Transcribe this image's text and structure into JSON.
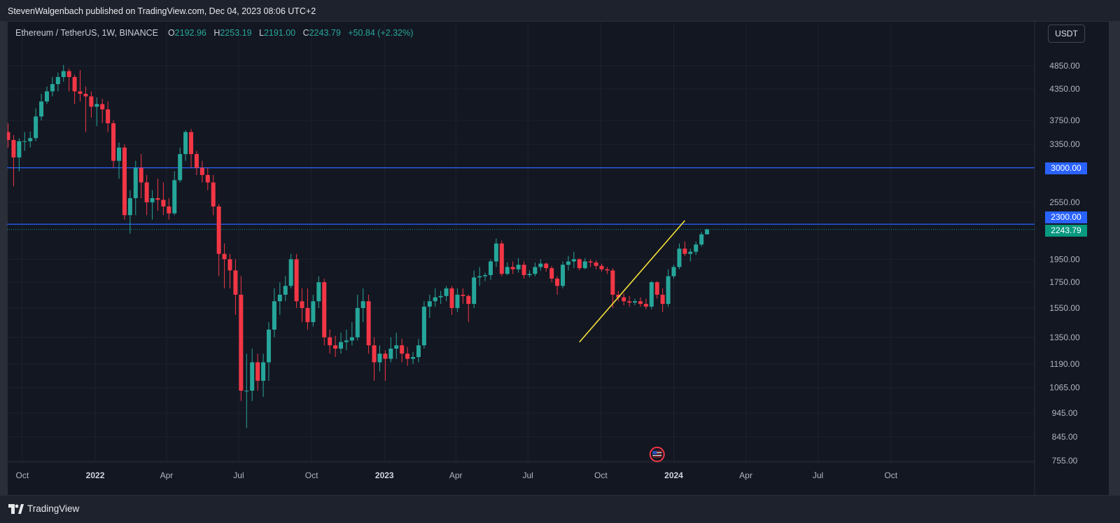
{
  "header": {
    "publisher_line": "StevenWalgenbach published on TradingView.com, Dec 04, 2023 08:06 UTC+2"
  },
  "legend": {
    "symbol": "Ethereum / TetherUS, 1W, BINANCE",
    "open_label": "O",
    "open": "2192.96",
    "high_label": "H",
    "high": "2253.19",
    "low_label": "L",
    "low": "2191.00",
    "close_label": "C",
    "close": "2243.79",
    "change": "+50.84 (+2.32%)"
  },
  "currency_button": "USDT",
  "footer": {
    "brand": "TradingView"
  },
  "colors": {
    "background": "#131722",
    "up": "#26a69a",
    "down": "#f23645",
    "level_line": "#2962ff",
    "trend_line": "#f5e03a",
    "last_price": "#089981"
  },
  "price_tags": {
    "level_3000": "3000.00",
    "level_2300": "2300.00",
    "last_price": "2243.79"
  },
  "chart_data": {
    "type": "candlestick",
    "timeframe": "1W",
    "y_scale": "log",
    "ylim": [
      720,
      5600
    ],
    "y_ticks": [
      "4850.00",
      "4350.00",
      "3750.00",
      "3350.00",
      "2550.00",
      "1950.00",
      "1750.00",
      "1550.00",
      "1350.00",
      "1190.00",
      "1065.00",
      "945.00",
      "845.00",
      "755.00"
    ],
    "x_ticks": [
      {
        "label": "Oct",
        "bold": false
      },
      {
        "label": "2022",
        "bold": true
      },
      {
        "label": "Apr",
        "bold": false
      },
      {
        "label": "Jul",
        "bold": false
      },
      {
        "label": "Oct",
        "bold": false
      },
      {
        "label": "2023",
        "bold": true
      },
      {
        "label": "Apr",
        "bold": false
      },
      {
        "label": "Jul",
        "bold": false
      },
      {
        "label": "Oct",
        "bold": false
      },
      {
        "label": "2024",
        "bold": true
      },
      {
        "label": "Apr",
        "bold": false
      },
      {
        "label": "Jul",
        "bold": false
      },
      {
        "label": "Oct",
        "bold": false
      }
    ],
    "horizontal_levels": [
      3000,
      2300
    ],
    "last_price": 2243.79,
    "trendline": {
      "from": {
        "date": "2023-09-04",
        "price": 1320
      },
      "to": {
        "date": "2024-01-15",
        "price": 2340
      }
    },
    "event_marker": {
      "date": "2023-12-11",
      "icon": "us-flag-icon"
    },
    "first_week": "2021-09-13",
    "candles": [
      [
        3550,
        3420,
        3700,
        3300
      ],
      [
        3420,
        3150,
        3500,
        2750
      ],
      [
        3150,
        3400,
        3450,
        2950
      ],
      [
        3400,
        3400,
        3550,
        3250
      ],
      [
        3400,
        3450,
        3560,
        3300
      ],
      [
        3450,
        3820,
        3970,
        3400
      ],
      [
        3820,
        4100,
        4250,
        3750
      ],
      [
        4100,
        4300,
        4400,
        4050
      ],
      [
        4300,
        4450,
        4600,
        4200
      ],
      [
        4450,
        4600,
        4700,
        4300
      ],
      [
        4600,
        4730,
        4870,
        4500
      ],
      [
        4730,
        4600,
        4790,
        4300
      ],
      [
        4600,
        4300,
        4650,
        4050
      ],
      [
        4300,
        4250,
        4750,
        4100
      ],
      [
        4250,
        4200,
        4400,
        3550
      ],
      [
        4200,
        4000,
        4300,
        3800
      ],
      [
        4000,
        4050,
        4180,
        3650
      ],
      [
        4050,
        3950,
        4150,
        3700
      ],
      [
        3950,
        3700,
        4100,
        3550
      ],
      [
        3700,
        3100,
        3750,
        3000
      ],
      [
        3100,
        3300,
        3380,
        2850
      ],
      [
        3300,
        2400,
        3350,
        2350
      ],
      [
        2400,
        2600,
        2700,
        2200
      ],
      [
        2600,
        3000,
        3100,
        2400
      ],
      [
        3000,
        2800,
        3200,
        2600
      ],
      [
        2800,
        2550,
        2900,
        2400
      ],
      [
        2550,
        2600,
        2700,
        2350
      ],
      [
        2600,
        2580,
        2850,
        2450
      ],
      [
        2580,
        2500,
        2800,
        2400
      ],
      [
        2500,
        2420,
        2600,
        2350
      ],
      [
        2420,
        2830,
        2950,
        2400
      ],
      [
        2830,
        3200,
        3300,
        2800
      ],
      [
        3200,
        3550,
        3580,
        3100
      ],
      [
        3550,
        3200,
        3600,
        3000
      ],
      [
        3200,
        3000,
        3250,
        2900
      ],
      [
        3000,
        2900,
        3100,
        2800
      ],
      [
        2900,
        2800,
        3000,
        2700
      ],
      [
        2800,
        2500,
        2900,
        2400
      ],
      [
        2500,
        2000,
        2530,
        1800
      ],
      [
        2000,
        1950,
        2100,
        1700
      ],
      [
        1950,
        1850,
        2000,
        1700
      ],
      [
        1850,
        1650,
        1950,
        1500
      ],
      [
        1650,
        1050,
        1800,
        1000
      ],
      [
        1050,
        1050,
        1250,
        880
      ],
      [
        1050,
        1200,
        1280,
        1000
      ],
      [
        1200,
        1100,
        1250,
        1050
      ],
      [
        1100,
        1200,
        1250,
        1020
      ],
      [
        1200,
        1400,
        1450,
        1100
      ],
      [
        1400,
        1600,
        1700,
        1350
      ],
      [
        1600,
        1650,
        1750,
        1500
      ],
      [
        1650,
        1720,
        1800,
        1600
      ],
      [
        1720,
        1950,
        2000,
        1700
      ],
      [
        1950,
        1600,
        2000,
        1550
      ],
      [
        1600,
        1550,
        1700,
        1450
      ],
      [
        1550,
        1450,
        1700,
        1400
      ],
      [
        1450,
        1600,
        1650,
        1420
      ],
      [
        1600,
        1750,
        1800,
        1550
      ],
      [
        1750,
        1350,
        1780,
        1300
      ],
      [
        1350,
        1300,
        1400,
        1250
      ],
      [
        1300,
        1280,
        1360,
        1230
      ],
      [
        1280,
        1320,
        1380,
        1250
      ],
      [
        1320,
        1330,
        1400,
        1270
      ],
      [
        1330,
        1350,
        1450,
        1300
      ],
      [
        1350,
        1550,
        1650,
        1330
      ],
      [
        1550,
        1600,
        1700,
        1450
      ],
      [
        1600,
        1300,
        1650,
        1250
      ],
      [
        1300,
        1200,
        1350,
        1100
      ],
      [
        1200,
        1250,
        1300,
        1150
      ],
      [
        1250,
        1220,
        1270,
        1100
      ],
      [
        1220,
        1280,
        1350,
        1200
      ],
      [
        1280,
        1300,
        1380,
        1220
      ],
      [
        1300,
        1250,
        1340,
        1200
      ],
      [
        1250,
        1220,
        1290,
        1180
      ],
      [
        1220,
        1230,
        1260,
        1190
      ],
      [
        1230,
        1300,
        1340,
        1200
      ],
      [
        1300,
        1560,
        1600,
        1280
      ],
      [
        1560,
        1600,
        1650,
        1480
      ],
      [
        1600,
        1630,
        1700,
        1560
      ],
      [
        1630,
        1640,
        1680,
        1580
      ],
      [
        1640,
        1700,
        1720,
        1600
      ],
      [
        1700,
        1550,
        1720,
        1500
      ],
      [
        1550,
        1650,
        1700,
        1520
      ],
      [
        1650,
        1640,
        1700,
        1580
      ],
      [
        1640,
        1580,
        1650,
        1450
      ],
      [
        1580,
        1790,
        1850,
        1550
      ],
      [
        1790,
        1800,
        1880,
        1720
      ],
      [
        1800,
        1810,
        1830,
        1760
      ],
      [
        1810,
        1930,
        1950,
        1770
      ],
      [
        1930,
        2100,
        2150,
        1880
      ],
      [
        2100,
        1820,
        2130,
        1800
      ],
      [
        1820,
        1880,
        1920,
        1810
      ],
      [
        1880,
        1860,
        1930,
        1820
      ],
      [
        1860,
        1900,
        1960,
        1830
      ],
      [
        1900,
        1810,
        1930,
        1780
      ],
      [
        1810,
        1820,
        1850,
        1790
      ],
      [
        1820,
        1880,
        1920,
        1800
      ],
      [
        1880,
        1910,
        1950,
        1850
      ],
      [
        1910,
        1870,
        1920,
        1840
      ],
      [
        1870,
        1780,
        1890,
        1750
      ],
      [
        1780,
        1720,
        1800,
        1650
      ],
      [
        1720,
        1900,
        1930,
        1700
      ],
      [
        1900,
        1930,
        1980,
        1850
      ],
      [
        1930,
        1950,
        2020,
        1870
      ],
      [
        1950,
        1870,
        1960,
        1850
      ],
      [
        1870,
        1930,
        1960,
        1860
      ],
      [
        1930,
        1920,
        1950,
        1880
      ],
      [
        1920,
        1890,
        1940,
        1860
      ],
      [
        1890,
        1860,
        1910,
        1840
      ],
      [
        1860,
        1850,
        1880,
        1820
      ],
      [
        1850,
        1650,
        1870,
        1550
      ],
      [
        1650,
        1630,
        1680,
        1600
      ],
      [
        1630,
        1600,
        1660,
        1570
      ],
      [
        1600,
        1590,
        1640,
        1560
      ],
      [
        1590,
        1600,
        1620,
        1570
      ],
      [
        1600,
        1580,
        1630,
        1560
      ],
      [
        1580,
        1560,
        1620,
        1540
      ],
      [
        1560,
        1750,
        1760,
        1540
      ],
      [
        1750,
        1650,
        1760,
        1620
      ],
      [
        1650,
        1580,
        1700,
        1520
      ],
      [
        1580,
        1800,
        1860,
        1560
      ],
      [
        1800,
        1880,
        1900,
        1780
      ],
      [
        1880,
        2050,
        2100,
        1860
      ],
      [
        2050,
        2000,
        2120,
        1980
      ],
      [
        2000,
        2020,
        2050,
        1930
      ],
      [
        2020,
        2090,
        2120,
        1990
      ],
      [
        2090,
        2192.96,
        2220,
        2070
      ],
      [
        2192.96,
        2243.79,
        2253.19,
        2191.0
      ]
    ]
  }
}
